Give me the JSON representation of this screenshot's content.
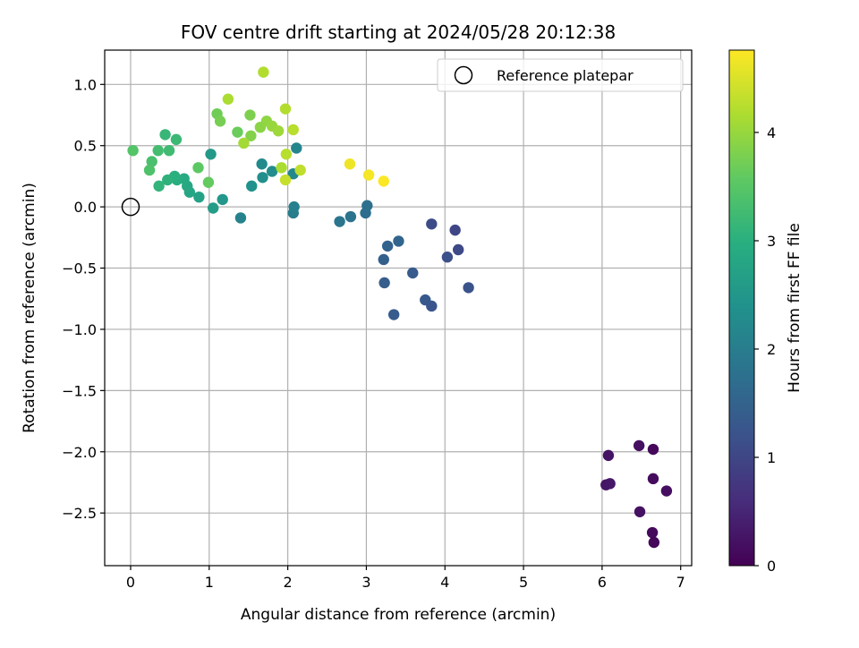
{
  "chart_data": {
    "type": "scatter",
    "title": "FOV centre drift starting at 2024/05/28 20:12:38",
    "xlabel": "Angular distance from reference (arcmin)",
    "ylabel": "Rotation from reference (arcmin)",
    "xlim": [
      -0.33,
      7.14
    ],
    "ylim": [
      -2.93,
      1.28
    ],
    "xticks": [
      0,
      1,
      2,
      3,
      4,
      5,
      6,
      7
    ],
    "xtick_labels": [
      "0",
      "1",
      "2",
      "3",
      "4",
      "5",
      "6",
      "7"
    ],
    "yticks": [
      1.0,
      0.5,
      0.0,
      -0.5,
      -1.0,
      -1.5,
      -2.0,
      -2.5
    ],
    "ytick_labels": [
      "1.0",
      "0.5",
      "0.0",
      "−0.5",
      "−1.0",
      "−1.5",
      "−2.0",
      "−2.5"
    ],
    "grid": true,
    "colormap": "viridis",
    "colorbar": {
      "label": "Hours from first FF file",
      "range": [
        0,
        4.76
      ],
      "ticks": [
        0,
        1,
        2,
        3,
        4
      ],
      "tick_labels": [
        "0",
        "1",
        "2",
        "3",
        "4"
      ]
    },
    "legend": {
      "position": "top-right",
      "entries": [
        "Reference platepar"
      ]
    },
    "reference_point": {
      "x": 0,
      "y": 0,
      "marker": "open-circle",
      "color": "#000000"
    },
    "points": [
      {
        "x": 6.08,
        "y": -2.03,
        "hours": 0.25
      },
      {
        "x": 6.05,
        "y": -2.27,
        "hours": 0.28
      },
      {
        "x": 6.1,
        "y": -2.26,
        "hours": 0.3
      },
      {
        "x": 6.47,
        "y": -1.95,
        "hours": 0.2
      },
      {
        "x": 6.65,
        "y": -1.98,
        "hours": 0.1
      },
      {
        "x": 6.65,
        "y": -2.22,
        "hours": 0.15
      },
      {
        "x": 6.82,
        "y": -2.32,
        "hours": 0.18
      },
      {
        "x": 6.48,
        "y": -2.49,
        "hours": 0.22
      },
      {
        "x": 6.64,
        "y": -2.66,
        "hours": 0.12
      },
      {
        "x": 6.66,
        "y": -2.74,
        "hours": 0.08
      },
      {
        "x": 3.83,
        "y": -0.14,
        "hours": 1.1
      },
      {
        "x": 4.13,
        "y": -0.19,
        "hours": 1.0
      },
      {
        "x": 4.17,
        "y": -0.35,
        "hours": 1.05
      },
      {
        "x": 4.03,
        "y": -0.41,
        "hours": 1.15
      },
      {
        "x": 4.3,
        "y": -0.66,
        "hours": 1.2
      },
      {
        "x": 3.83,
        "y": -0.81,
        "hours": 1.25
      },
      {
        "x": 3.75,
        "y": -0.76,
        "hours": 1.3
      },
      {
        "x": 3.35,
        "y": -0.88,
        "hours": 1.35
      },
      {
        "x": 3.23,
        "y": -0.62,
        "hours": 1.4
      },
      {
        "x": 3.59,
        "y": -0.54,
        "hours": 1.35
      },
      {
        "x": 3.22,
        "y": -0.43,
        "hours": 1.45
      },
      {
        "x": 3.27,
        "y": -0.32,
        "hours": 1.5
      },
      {
        "x": 3.41,
        "y": -0.28,
        "hours": 1.55
      },
      {
        "x": 2.99,
        "y": -0.05,
        "hours": 1.7
      },
      {
        "x": 3.01,
        "y": 0.01,
        "hours": 1.75
      },
      {
        "x": 2.8,
        "y": -0.08,
        "hours": 1.8
      },
      {
        "x": 2.66,
        "y": -0.12,
        "hours": 1.85
      },
      {
        "x": 2.07,
        "y": -0.05,
        "hours": 2.0
      },
      {
        "x": 2.08,
        "y": 0.0,
        "hours": 2.05
      },
      {
        "x": 1.4,
        "y": -0.09,
        "hours": 2.1
      },
      {
        "x": 2.11,
        "y": 0.48,
        "hours": 2.15
      },
      {
        "x": 2.07,
        "y": 0.27,
        "hours": 2.2
      },
      {
        "x": 1.67,
        "y": 0.35,
        "hours": 2.25
      },
      {
        "x": 1.8,
        "y": 0.29,
        "hours": 2.3
      },
      {
        "x": 1.68,
        "y": 0.24,
        "hours": 2.35
      },
      {
        "x": 1.54,
        "y": 0.17,
        "hours": 2.4
      },
      {
        "x": 1.17,
        "y": 0.06,
        "hours": 2.5
      },
      {
        "x": 1.05,
        "y": -0.01,
        "hours": 2.6
      },
      {
        "x": 1.02,
        "y": 0.43,
        "hours": 2.55
      },
      {
        "x": 0.87,
        "y": 0.08,
        "hours": 2.7
      },
      {
        "x": 0.75,
        "y": 0.12,
        "hours": 2.8
      },
      {
        "x": 0.72,
        "y": 0.17,
        "hours": 2.85
      },
      {
        "x": 0.68,
        "y": 0.23,
        "hours": 2.9
      },
      {
        "x": 0.59,
        "y": 0.22,
        "hours": 2.95
      },
      {
        "x": 0.56,
        "y": 0.25,
        "hours": 3.0
      },
      {
        "x": 0.47,
        "y": 0.22,
        "hours": 3.05
      },
      {
        "x": 0.36,
        "y": 0.17,
        "hours": 3.1
      },
      {
        "x": 0.44,
        "y": 0.59,
        "hours": 3.15
      },
      {
        "x": 0.58,
        "y": 0.55,
        "hours": 3.2
      },
      {
        "x": 0.49,
        "y": 0.46,
        "hours": 3.25
      },
      {
        "x": 0.35,
        "y": 0.46,
        "hours": 3.3
      },
      {
        "x": 0.27,
        "y": 0.37,
        "hours": 3.35
      },
      {
        "x": 0.24,
        "y": 0.3,
        "hours": 3.4
      },
      {
        "x": 0.03,
        "y": 0.46,
        "hours": 3.45
      },
      {
        "x": 0.86,
        "y": 0.32,
        "hours": 3.55
      },
      {
        "x": 0.99,
        "y": 0.2,
        "hours": 3.6
      },
      {
        "x": 1.36,
        "y": 0.61,
        "hours": 3.65
      },
      {
        "x": 1.1,
        "y": 0.76,
        "hours": 3.7
      },
      {
        "x": 1.14,
        "y": 0.7,
        "hours": 3.75
      },
      {
        "x": 1.52,
        "y": 0.75,
        "hours": 3.8
      },
      {
        "x": 1.53,
        "y": 0.58,
        "hours": 3.85
      },
      {
        "x": 1.65,
        "y": 0.65,
        "hours": 3.9
      },
      {
        "x": 1.73,
        "y": 0.7,
        "hours": 3.95
      },
      {
        "x": 1.8,
        "y": 0.66,
        "hours": 4.0
      },
      {
        "x": 1.88,
        "y": 0.62,
        "hours": 4.05
      },
      {
        "x": 1.44,
        "y": 0.52,
        "hours": 4.1
      },
      {
        "x": 1.24,
        "y": 0.88,
        "hours": 4.15
      },
      {
        "x": 1.69,
        "y": 1.1,
        "hours": 4.2
      },
      {
        "x": 1.97,
        "y": 0.8,
        "hours": 4.2
      },
      {
        "x": 2.07,
        "y": 0.63,
        "hours": 4.25
      },
      {
        "x": 1.98,
        "y": 0.43,
        "hours": 4.25
      },
      {
        "x": 1.92,
        "y": 0.32,
        "hours": 4.15
      },
      {
        "x": 2.16,
        "y": 0.3,
        "hours": 4.3
      },
      {
        "x": 1.97,
        "y": 0.22,
        "hours": 4.35
      },
      {
        "x": 2.79,
        "y": 0.35,
        "hours": 4.65
      },
      {
        "x": 3.03,
        "y": 0.26,
        "hours": 4.7
      },
      {
        "x": 3.22,
        "y": 0.21,
        "hours": 4.75
      }
    ]
  }
}
